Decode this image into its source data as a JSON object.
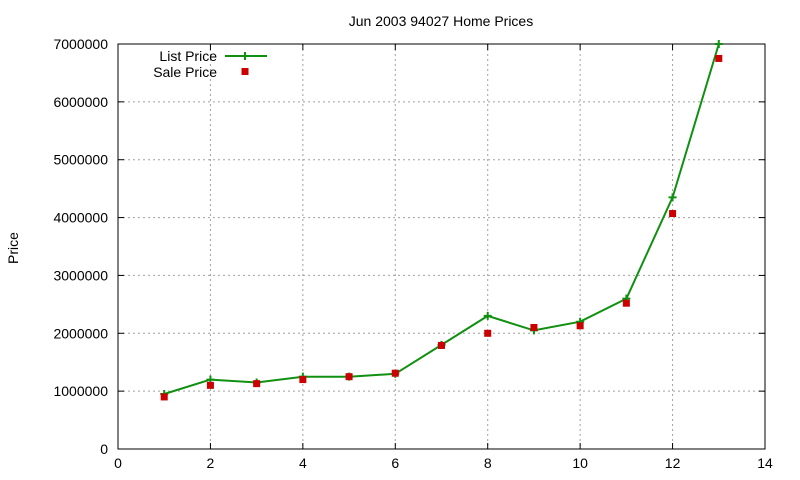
{
  "chart_data": {
    "type": "line",
    "title": "Jun 2003 94027 Home Prices",
    "xlabel": "",
    "ylabel": "Price",
    "xlim": [
      0,
      14
    ],
    "ylim": [
      0,
      7000000
    ],
    "x_ticks": [
      "0",
      "2",
      "4",
      "6",
      "8",
      "10",
      "12",
      "14"
    ],
    "y_ticks": [
      "0",
      "1000000",
      "2000000",
      "3000000",
      "4000000",
      "5000000",
      "6000000",
      "7000000"
    ],
    "grid": true,
    "legend_position": "top-left",
    "series": [
      {
        "name": "List Price",
        "style": "line-with-plus-markers",
        "color": "#109010",
        "points": [
          [
            1,
            950000
          ],
          [
            2,
            1200000
          ],
          [
            3,
            1150000
          ],
          [
            4,
            1250000
          ],
          [
            5,
            1250000
          ],
          [
            6,
            1300000
          ],
          [
            7,
            1800000
          ],
          [
            8,
            2300000
          ],
          [
            9,
            2050000
          ],
          [
            10,
            2200000
          ],
          [
            11,
            2600000
          ],
          [
            12,
            4350000
          ],
          [
            13,
            7000000
          ]
        ]
      },
      {
        "name": "Sale Price",
        "style": "square-markers",
        "color": "#cc0000",
        "points": [
          [
            1,
            900000
          ],
          [
            2,
            1100000
          ],
          [
            3,
            1130000
          ],
          [
            4,
            1200000
          ],
          [
            5,
            1250000
          ],
          [
            6,
            1310000
          ],
          [
            7,
            1790000
          ],
          [
            8,
            2000000
          ],
          [
            9,
            2100000
          ],
          [
            10,
            2130000
          ],
          [
            11,
            2520000
          ],
          [
            12,
            4070000
          ],
          [
            13,
            6750000
          ]
        ]
      }
    ]
  }
}
